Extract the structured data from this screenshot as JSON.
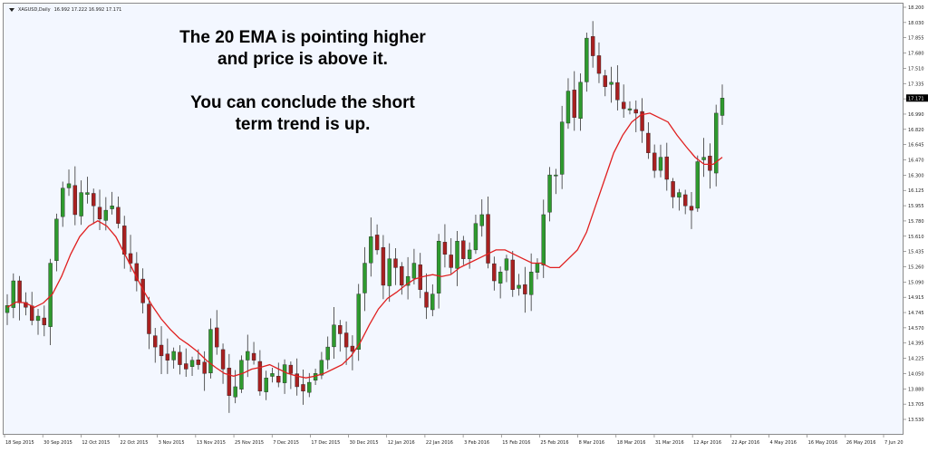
{
  "header": {
    "symbol": "XAGUSD,Daily",
    "ohlc": "16.992 17.222 16.992 17.171"
  },
  "annotation": {
    "line1": "The 20 EMA is pointing higher",
    "line2": "and price is above it.",
    "line3": "You can conclude the short",
    "line4": "term trend is up."
  },
  "chart_data": {
    "type": "candlestick",
    "instrument": "XAGUSD",
    "timeframe": "Daily",
    "indicator": "20 EMA",
    "colors": {
      "bull": "#2e9a2e",
      "bear": "#a82020",
      "ema": "#e02020",
      "current_price_label_bg": "#000000"
    },
    "y_ticks": [
      "18.200",
      "18.030",
      "17.855",
      "17.680",
      "17.510",
      "17.335",
      "17.160",
      "16.990",
      "16.820",
      "16.645",
      "16.470",
      "16.300",
      "16.125",
      "15.955",
      "15.780",
      "15.610",
      "15.435",
      "15.260",
      "15.090",
      "14.915",
      "14.745",
      "14.570",
      "14.395",
      "14.225",
      "14.050",
      "13.880",
      "13.705",
      "13.530"
    ],
    "ylim": [
      13.53,
      18.2
    ],
    "current_price": "17.171",
    "x_labels": [
      "18 Sep 2015",
      "30 Sep 2015",
      "12 Oct 2015",
      "22 Oct 2015",
      "3 Nov 2015",
      "13 Nov 2015",
      "25 Nov 2015",
      "7 Dec 2015",
      "17 Dec 2015",
      "30 Dec 2015",
      "12 Jan 2016",
      "22 Jan 2016",
      "3 Feb 2016",
      "15 Feb 2016",
      "25 Feb 2016",
      "8 Mar 2016",
      "18 Mar 2016",
      "31 Mar 2016",
      "12 Apr 2016",
      "22 Apr 2016",
      "4 May 2016",
      "16 May 2016",
      "26 May 2016",
      "7 Jun 2016"
    ],
    "close_path": [
      14.82,
      15.1,
      14.85,
      14.8,
      14.65,
      14.7,
      14.6,
      15.3,
      15.8,
      16.15,
      16.2,
      15.85,
      16.1,
      16.1,
      15.95,
      15.8,
      15.9,
      15.95,
      15.75,
      15.4,
      15.3,
      15.1,
      14.85,
      14.5,
      14.35,
      14.25,
      14.2,
      14.3,
      14.15,
      14.1,
      14.2,
      14.15,
      14.05,
      14.55,
      14.35,
      14.1,
      13.8,
      13.9,
      14.2,
      14.3,
      14.2,
      13.85,
      14.0,
      14.05,
      13.95,
      14.15,
      14.05,
      13.9,
      13.85,
      13.95,
      14.05,
      14.2,
      14.35,
      14.6,
      14.5,
      14.35,
      14.3,
      14.95,
      15.3,
      15.6,
      15.45,
      15.05,
      15.35,
      15.25,
      15.05,
      15.15,
      15.3,
      15.0,
      14.8,
      14.95,
      15.55,
      15.4,
      15.25,
      15.55,
      15.35,
      15.45,
      15.75,
      15.85,
      15.3,
      15.1,
      15.2,
      15.35,
      15.0,
      15.05,
      14.95,
      15.2,
      15.3,
      15.85,
      16.3,
      16.3,
      16.9,
      17.25,
      16.95,
      17.35,
      17.85,
      17.65,
      17.45,
      17.3,
      17.35,
      17.15,
      17.05,
      17.05,
      17.0,
      16.8,
      16.55,
      16.35,
      16.5,
      16.25,
      16.05,
      16.1,
      15.95,
      15.9,
      16.45,
      16.5,
      16.35,
      17.0,
      17.171
    ],
    "ema_path": [
      14.8,
      14.86,
      14.85,
      14.8,
      14.85,
      14.95,
      15.15,
      15.4,
      15.6,
      15.72,
      15.78,
      15.72,
      15.6,
      15.4,
      15.2,
      15.0,
      14.82,
      14.67,
      14.55,
      14.45,
      14.38,
      14.3,
      14.2,
      14.12,
      14.05,
      14.02,
      14.05,
      14.1,
      14.12,
      14.15,
      14.1,
      14.05,
      14.02,
      14.0,
      14.02,
      14.05,
      14.1,
      14.15,
      14.25,
      14.4,
      14.6,
      14.78,
      14.9,
      14.97,
      15.05,
      15.12,
      15.15,
      15.17,
      15.15,
      15.17,
      15.25,
      15.3,
      15.35,
      15.4,
      15.45,
      15.45,
      15.4,
      15.35,
      15.3,
      15.3,
      15.25,
      15.25,
      15.35,
      15.45,
      15.65,
      15.95,
      16.25,
      16.55,
      16.75,
      16.9,
      16.98,
      17.0,
      16.95,
      16.9,
      16.75,
      16.62,
      16.5,
      16.42,
      16.42,
      16.5
    ]
  }
}
